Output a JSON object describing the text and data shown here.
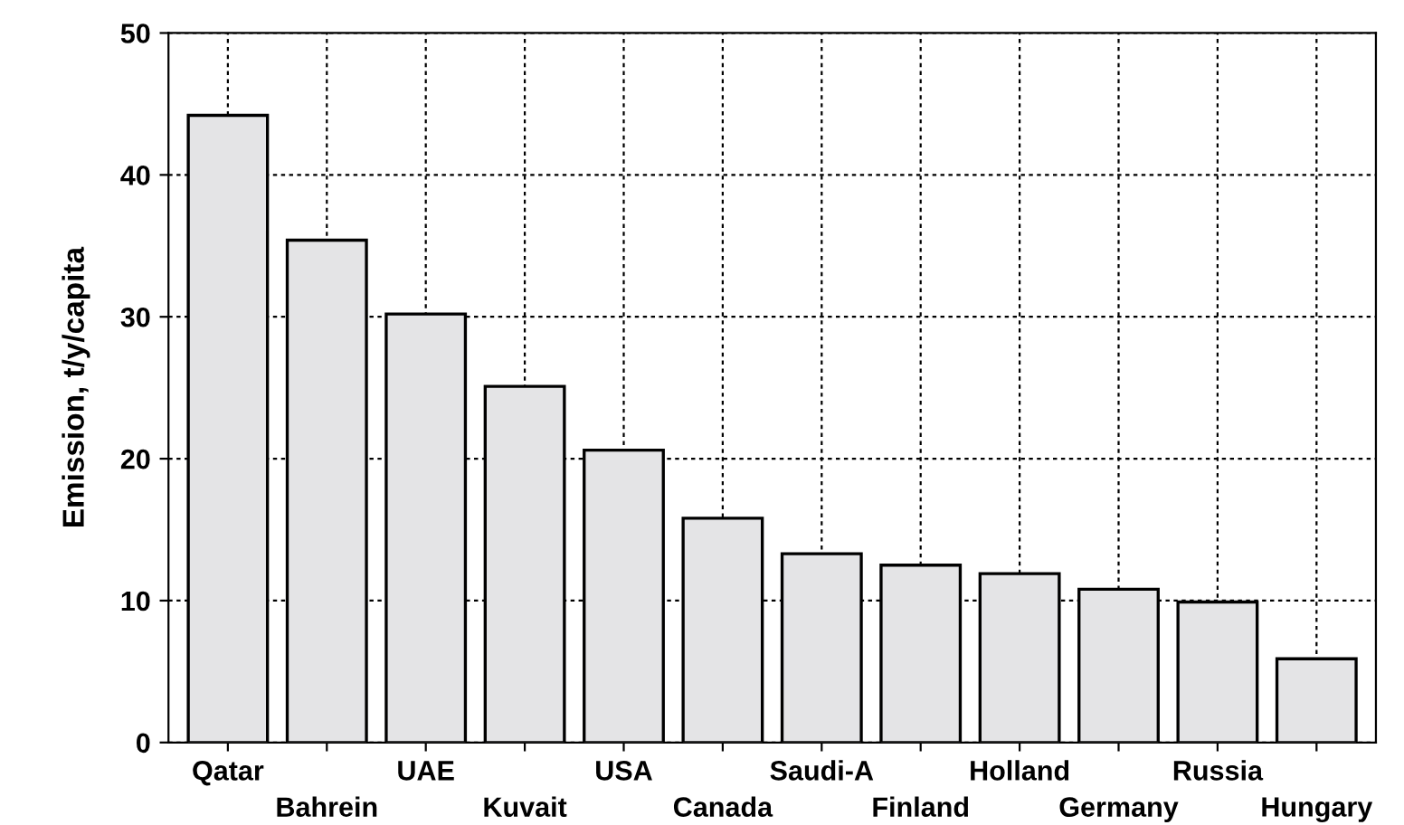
{
  "chart_data": {
    "type": "bar",
    "ylabel": "Emission, t/y/capita",
    "categories": [
      "Qatar",
      "Bahrein",
      "UAE",
      "Kuvait",
      "USA",
      "Canada",
      "Saudi-A",
      "Finland",
      "Holland",
      "Germany",
      "Russia",
      "Hungary"
    ],
    "values": [
      44.2,
      35.4,
      30.2,
      25.1,
      20.6,
      15.8,
      13.3,
      12.5,
      11.9,
      10.8,
      9.9,
      5.9
    ],
    "color": "#e4e4e6",
    "ylim": [
      0,
      50
    ],
    "yticks": [
      0,
      10,
      20,
      30,
      40,
      50
    ],
    "grid": true,
    "line_style": "dashed"
  }
}
